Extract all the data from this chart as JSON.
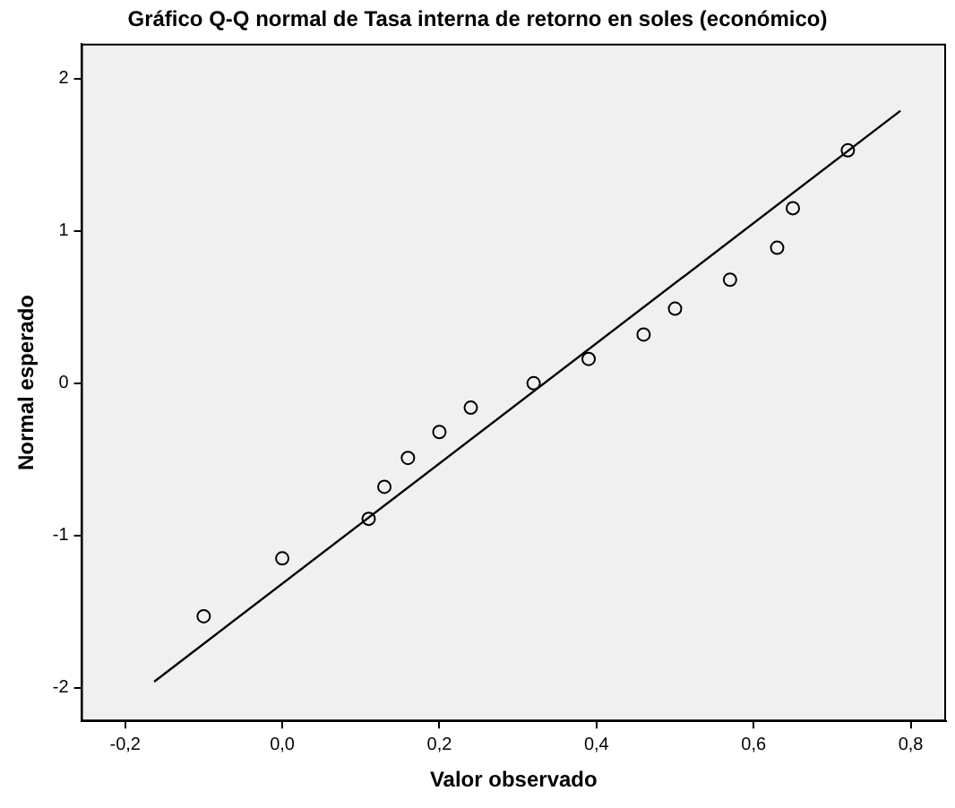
{
  "chart_data": {
    "type": "scatter",
    "title": "Gráfico Q-Q normal de Tasa interna de retorno en soles (económico)",
    "xlabel": "Valor observado",
    "ylabel": "Normal esperado",
    "series": [
      {
        "color": "#000000",
        "marker": "circle",
        "x": [
          -0.1,
          0.0,
          0.11,
          0.13,
          0.16,
          0.2,
          0.24,
          0.32,
          0.39,
          0.46,
          0.5,
          0.57,
          0.63,
          0.65,
          0.72
        ],
        "values": [
          -1.53,
          -1.15,
          -0.89,
          -0.68,
          -0.49,
          -0.32,
          -0.16,
          0.0,
          0.16,
          0.32,
          0.49,
          0.68,
          0.89,
          1.15,
          1.53
        ]
      },
      {
        "type": "line",
        "color": "#000000",
        "marker": "none",
        "x": [
          -0.163,
          0.787
        ],
        "values": [
          -1.96,
          1.79
        ]
      }
    ],
    "xlim": [
      -0.256,
      0.845
    ],
    "ylim": [
      -2.22,
      2.23
    ],
    "xticks": [
      {
        "value": -0.2,
        "label": "-0,2"
      },
      {
        "value": 0,
        "label": "0,0"
      },
      {
        "value": 0.2,
        "label": "0,2"
      },
      {
        "value": 0.4,
        "label": "0,4"
      },
      {
        "value": 0.6,
        "label": "0,6"
      },
      {
        "value": 0.8,
        "label": "0,8"
      }
    ],
    "yticks": [
      -2,
      -1,
      0,
      1,
      2
    ],
    "grid": false
  }
}
